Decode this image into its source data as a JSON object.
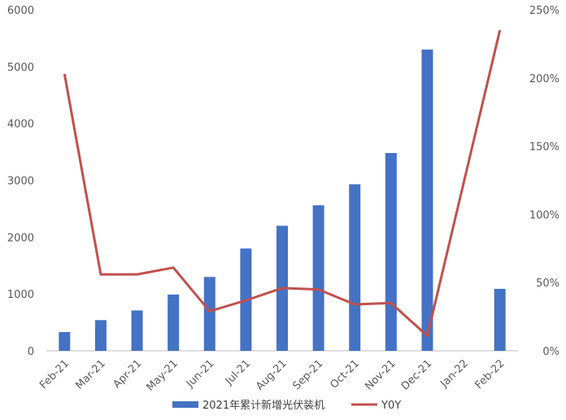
{
  "chart_data": {
    "type": "bar+line",
    "categories": [
      "Feb-21",
      "Mar-21",
      "Apr-21",
      "May-21",
      "Jun-21",
      "Jul-21",
      "Aug-21",
      "Sep-21",
      "Oct-21",
      "Nov-21",
      "Dec-21",
      "Jan-22",
      "Feb-22"
    ],
    "series": [
      {
        "name": "2021年累计新增光伏装机",
        "type": "bar",
        "axis": "left",
        "color": "#4472C4",
        "values": [
          330,
          540,
          710,
          990,
          1300,
          1800,
          2200,
          2560,
          2930,
          3480,
          5300,
          null,
          1090
        ]
      },
      {
        "name": "Y0Y",
        "type": "line",
        "axis": "right",
        "color": "#C0504D",
        "values": [
          203,
          56,
          56,
          61,
          29,
          37,
          46,
          45,
          34,
          35,
          11,
          null,
          235
        ]
      }
    ],
    "y_left": {
      "min": 0,
      "max": 6000,
      "ticks": [
        "0",
        "1000",
        "2000",
        "3000",
        "4000",
        "5000",
        "6000"
      ]
    },
    "y_right": {
      "min": 0,
      "max": 250,
      "ticks": [
        "0%",
        "50%",
        "100%",
        "150%",
        "200%",
        "250%"
      ]
    },
    "legend_position": "bottom",
    "grid": false
  }
}
